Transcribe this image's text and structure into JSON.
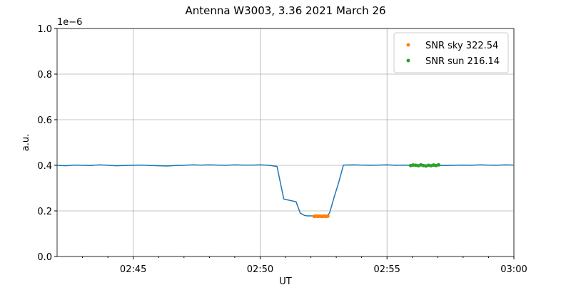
{
  "chart_data": {
    "type": "line",
    "title": "Antenna W3003, 3.36 2021 March 26",
    "xlabel": "UT",
    "ylabel": "a.u.",
    "y_offset_label": "1e−6",
    "xlim": [
      "02:42",
      "03:00"
    ],
    "xticks": [
      "02:45",
      "02:50",
      "02:55",
      "03:00"
    ],
    "xminorticks": [
      "02:43",
      "02:44",
      "02:46",
      "02:47",
      "02:48",
      "02:49",
      "02:51",
      "02:52",
      "02:53",
      "02:54",
      "02:56",
      "02:57",
      "02:58",
      "02:59"
    ],
    "ylim": [
      0,
      1e-06
    ],
    "yticks": [
      {
        "value": 0,
        "label": "0.0"
      },
      {
        "value": 2e-07,
        "label": "0.2"
      },
      {
        "value": 4e-07,
        "label": "0.4"
      },
      {
        "value": 6e-07,
        "label": "0.6"
      },
      {
        "value": 8e-07,
        "label": "0.8"
      },
      {
        "value": 1e-06,
        "label": "1.0"
      }
    ],
    "grid": true,
    "legend": "upper right",
    "series": [
      {
        "type": "line",
        "color": "#1f77b4",
        "x": [
          "02:42:00",
          "02:42:20",
          "02:42:40",
          "02:43:00",
          "02:43:20",
          "02:43:40",
          "02:44:00",
          "02:44:20",
          "02:44:40",
          "02:45:00",
          "02:45:20",
          "02:45:40",
          "02:46:00",
          "02:46:20",
          "02:46:40",
          "02:47:00",
          "02:47:20",
          "02:47:40",
          "02:48:00",
          "02:48:20",
          "02:48:40",
          "02:49:00",
          "02:49:20",
          "02:49:40",
          "02:50:00",
          "02:50:20",
          "02:50:40",
          "02:50:56",
          "02:51:25",
          "02:51:35",
          "02:51:45",
          "02:51:52",
          "02:52:10",
          "02:52:40",
          "02:52:45",
          "02:52:55",
          "02:53:05",
          "02:53:17",
          "02:53:40",
          "02:54:00",
          "02:54:20",
          "02:54:40",
          "02:55:00",
          "02:55:20",
          "02:55:40",
          "02:56:00",
          "02:56:20",
          "02:56:40",
          "02:57:00",
          "02:57:20",
          "02:57:40",
          "02:58:00",
          "02:58:20",
          "02:58:40",
          "02:59:00",
          "02:59:20",
          "02:59:40",
          "03:00:00"
        ],
        "values": [
          4e-07,
          3.98e-07,
          4.01e-07,
          4e-07,
          3.99e-07,
          4.02e-07,
          4e-07,
          3.98e-07,
          3.99e-07,
          4e-07,
          4.01e-07,
          3.99e-07,
          3.98e-07,
          3.97e-07,
          3.99e-07,
          4e-07,
          4.02e-07,
          4.01e-07,
          4.02e-07,
          4.01e-07,
          4e-07,
          4.02e-07,
          4.01e-07,
          4.01e-07,
          4.02e-07,
          4e-07,
          3.95e-07,
          2.52e-07,
          2.4e-07,
          1.9e-07,
          1.8e-07,
          1.78e-07,
          1.78e-07,
          1.78e-07,
          1.95e-07,
          2.6e-07,
          3.2e-07,
          4.01e-07,
          4.02e-07,
          4.01e-07,
          4e-07,
          4.01e-07,
          4.02e-07,
          4e-07,
          4.01e-07,
          3.99e-07,
          4e-07,
          4.01e-07,
          4e-07,
          3.99e-07,
          4e-07,
          4.01e-07,
          4e-07,
          4.02e-07,
          4.01e-07,
          4e-07,
          4.02e-07,
          4.01e-07
        ]
      },
      {
        "type": "scatter",
        "name": "SNR sky 322.54",
        "color": "#ff7f0e",
        "x": [
          "02:52:08",
          "02:52:12",
          "02:52:16",
          "02:52:20",
          "02:52:24",
          "02:52:28",
          "02:52:32",
          "02:52:36",
          "02:52:40"
        ],
        "values": [
          1.76e-07,
          1.77e-07,
          1.76e-07,
          1.77e-07,
          1.76e-07,
          1.76e-07,
          1.77e-07,
          1.76e-07,
          1.77e-07
        ]
      },
      {
        "type": "scatter",
        "name": "SNR sun 216.14",
        "color": "#2ca02c",
        "x": [
          "02:55:56",
          "02:56:02",
          "02:56:08",
          "02:56:14",
          "02:56:20",
          "02:56:26",
          "02:56:32",
          "02:56:38",
          "02:56:44",
          "02:56:50",
          "02:56:56",
          "02:57:02"
        ],
        "values": [
          3.99e-07,
          4.01e-07,
          4e-07,
          3.98e-07,
          4.02e-07,
          3.99e-07,
          3.97e-07,
          4e-07,
          3.98e-07,
          4.01e-07,
          3.99e-07,
          4.02e-07
        ]
      }
    ]
  }
}
